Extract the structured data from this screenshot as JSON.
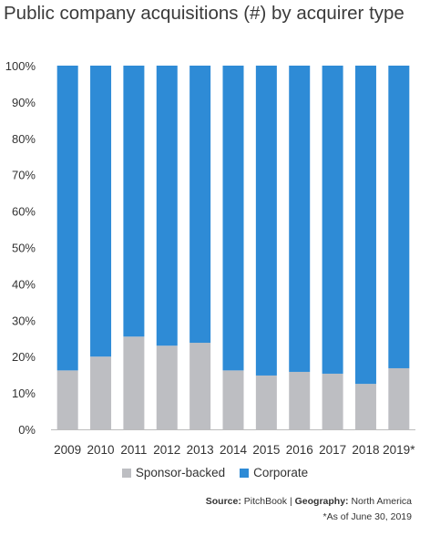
{
  "title": "Public company acquisitions (#) by acquirer type",
  "chart_data": {
    "type": "bar",
    "stacked": true,
    "normalized_percent": true,
    "categories": [
      "2009",
      "2010",
      "2011",
      "2012",
      "2013",
      "2014",
      "2015",
      "2016",
      "2017",
      "2018",
      "2019*"
    ],
    "series": [
      {
        "name": "Sponsor-backed",
        "color": "#bdbec2",
        "values": [
          16.2,
          20.0,
          25.5,
          23.0,
          23.8,
          16.2,
          14.8,
          15.8,
          15.3,
          12.5,
          16.8
        ]
      },
      {
        "name": "Corporate",
        "color": "#2e8bd6",
        "values": [
          83.8,
          80.0,
          74.5,
          77.0,
          76.2,
          83.8,
          85.2,
          84.2,
          84.7,
          87.5,
          83.2
        ]
      }
    ],
    "y_ticks": [
      "0%",
      "10%",
      "20%",
      "30%",
      "40%",
      "50%",
      "60%",
      "70%",
      "80%",
      "90%",
      "100%"
    ],
    "ylim": [
      0,
      100
    ],
    "grid": false,
    "legend_position": "bottom"
  },
  "legend": [
    {
      "label": "Sponsor-backed",
      "color": "#bdbec2"
    },
    {
      "label": "Corporate",
      "color": "#2e8bd6"
    }
  ],
  "source": {
    "source_label": "Source:",
    "source_value": "PitchBook",
    "separator": "|",
    "geo_label": "Geography:",
    "geo_value": "North America"
  },
  "note": "*As of June 30, 2019"
}
